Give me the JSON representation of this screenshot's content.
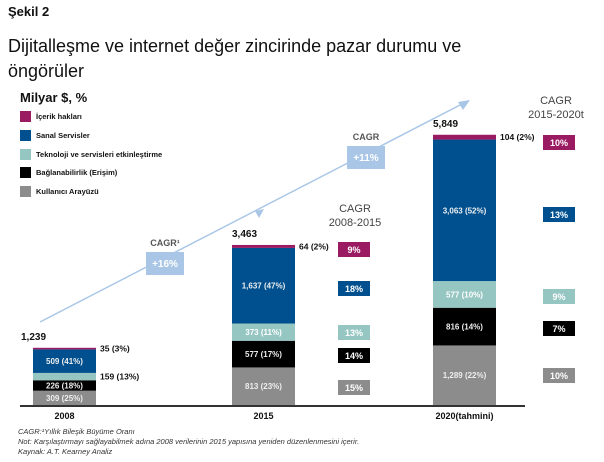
{
  "figure_label": "Şekil 2",
  "title": "Dijitalleşme ve internet değer zincirinde pazar durumu ve öngörüler",
  "title_lines": [
    "Dijitalleşme ve internet değer zincirinde pazar durumu ve",
    "öngörüler"
  ],
  "footnotes": [
    "CAGR:¹Yıllık Bileşik Büyüme Oranı",
    "Not: Karşılaştırmayı sağlayabilmek adına 2008 verilerinin 2015 yapısına yeniden düzenlenmesini içerir.",
    "Kaynak: A.T. Kearney Analiz"
  ],
  "chart_data": {
    "type": "bar",
    "stacked": true,
    "ylabel": "Milyar $, %",
    "categories": [
      "2008",
      "2015",
      "2020(tahmini)"
    ],
    "totals": [
      "1,239",
      "3,463",
      "5,849"
    ],
    "series": [
      {
        "name": "Kullanıcı Arayüzü",
        "color": "#8c8c8c",
        "values": [
          309,
          813,
          1289
        ],
        "labels": [
          "309 (25%)",
          "813 (23%)",
          "1,289 (22%)"
        ]
      },
      {
        "name": "Bağlanabilirlik (Erişim)",
        "color": "#000000",
        "values": [
          226,
          577,
          816
        ],
        "labels": [
          "226 (18%)",
          "577 (17%)",
          "816 (14%)"
        ]
      },
      {
        "name": "Teknoloji ve servisleri etkinleştirme",
        "color": "#96c6c2",
        "values": [
          159,
          373,
          577
        ],
        "labels": [
          "159 (13%)",
          "373 (11%)",
          "577 (10%)"
        ]
      },
      {
        "name": "Sanal Servisler",
        "color": "#00508f",
        "values": [
          509,
          1637,
          3063
        ],
        "labels": [
          "509 (41%)",
          "1,637 (47%)",
          "3,063 (52%)"
        ]
      },
      {
        "name": "İçerik hakları",
        "color": "#9b1b62",
        "values": [
          35,
          64,
          104
        ],
        "labels": [
          "35 (3%)",
          "64 (2%)",
          "104 (2%)"
        ]
      }
    ],
    "legend_order": [
      4,
      3,
      2,
      1,
      0
    ],
    "cagr_2008_2015": {
      "label": [
        "CAGR",
        "2008-2015"
      ],
      "values": [
        "15%",
        "14%",
        "13%",
        "18%",
        "9%"
      ]
    },
    "cagr_2015_2020": {
      "label": [
        "CAGR",
        "2015-2020t"
      ],
      "values": [
        "10%",
        "7%",
        "9%",
        "13%",
        "10%"
      ]
    },
    "total_cagr": [
      {
        "label": "CAGR¹",
        "value": "+16%"
      },
      {
        "label": "CAGR",
        "value": "+11%"
      }
    ],
    "arrow_color": "#a9c6e6"
  }
}
